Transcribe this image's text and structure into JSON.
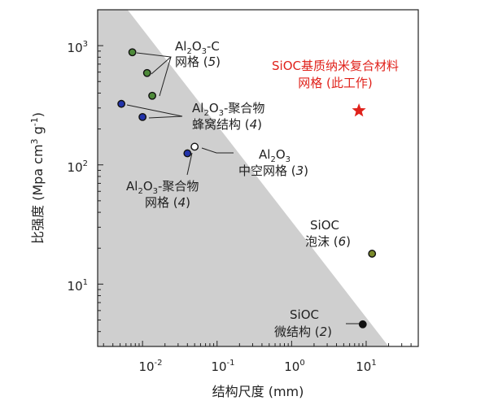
{
  "chart_data": {
    "type": "scatter",
    "title": "",
    "xlabel": "结构尺度 (mm)",
    "ylabel": "比强度 (Mpa cm3 g-1)",
    "x_scale": "log",
    "y_scale": "log",
    "xlim": [
      0.0025,
      50
    ],
    "ylim": [
      3,
      2000
    ],
    "x_ticks": [
      {
        "value": 0.01,
        "base": "10",
        "exp": "-2"
      },
      {
        "value": 0.1,
        "base": "10",
        "exp": "-1"
      },
      {
        "value": 1,
        "base": "10",
        "exp": "0"
      },
      {
        "value": 10,
        "base": "10",
        "exp": "1"
      }
    ],
    "y_ticks": [
      {
        "value": 10,
        "base": "10",
        "exp": "1"
      },
      {
        "value": 100,
        "base": "10",
        "exp": "2"
      },
      {
        "value": 1000,
        "base": "10",
        "exp": "3"
      }
    ],
    "region_boundary": [
      [
        0.0063,
        2000
      ],
      [
        20,
        3
      ]
    ],
    "region_color": "#cfcfcf",
    "series": [
      {
        "group": "al2o3-c",
        "color": "#4e8a3a",
        "points": [
          [
            0.0073,
            880
          ],
          [
            0.0115,
            590
          ],
          [
            0.0135,
            380
          ]
        ]
      },
      {
        "group": "al2o3-polymer-honeycomb",
        "color": "#2233aa",
        "points": [
          [
            0.0052,
            325
          ],
          [
            0.01,
            252
          ]
        ]
      },
      {
        "group": "al2o3-polymer-mesh",
        "color": "#2233aa",
        "points": [
          [
            0.04,
            125
          ]
        ]
      },
      {
        "group": "al2o3-hollow",
        "color": "#ffffff",
        "points": [
          [
            0.05,
            142
          ]
        ]
      },
      {
        "group": "sioc-foam",
        "color": "#7a8a2a",
        "points": [
          [
            12,
            18
          ]
        ]
      },
      {
        "group": "sioc-micro",
        "color": "#111111",
        "points": [
          [
            9,
            4.6
          ]
        ]
      },
      {
        "group": "sioc-nano-this-work",
        "color": "#e0221b",
        "marker": "star",
        "points": [
          [
            8,
            285
          ]
        ]
      }
    ],
    "annotations": {
      "al2o3_c": {
        "line1": "Al",
        "sub1": "2",
        "line1b": "O",
        "sub1b": "3",
        "line1c": "-C",
        "line2": "网格 (",
        "ref": "5",
        "close": ")"
      },
      "honeycomb": {
        "line1": "Al",
        "sub1": "2",
        "line1b": "O",
        "sub1b": "3",
        "line1c": "-聚合物",
        "line2": "蜂窝结构 (",
        "ref": "4",
        "close": ")"
      },
      "hollow": {
        "line1": "Al",
        "sub1": "2",
        "line1b": "O",
        "sub1b": "3",
        "line2": "中空网格 (",
        "ref": "3",
        "close": ")"
      },
      "mesh": {
        "line1": "Al",
        "sub1": "2",
        "line1b": "O",
        "sub1b": "3",
        "line1c": "-聚合物",
        "line2": "网格 (",
        "ref": "4",
        "close": ")"
      },
      "foam": {
        "line1": "SiOC",
        "line2": "泡沫 (",
        "ref": "6",
        "close": ")"
      },
      "micro": {
        "line1": "SiOC",
        "line2": "微结构 (",
        "ref": "2",
        "close": ")"
      },
      "this_work": {
        "line1": "SiOC基质纳米复合材料",
        "line2": "网格 (此工作)"
      }
    }
  }
}
